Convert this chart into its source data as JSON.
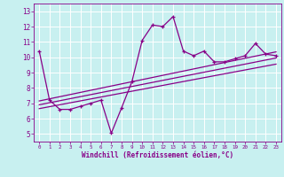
{
  "x_data": [
    0,
    1,
    2,
    3,
    4,
    5,
    6,
    7,
    8,
    9,
    10,
    11,
    12,
    13,
    14,
    15,
    16,
    17,
    18,
    19,
    20,
    21,
    22,
    23
  ],
  "y_main": [
    10.4,
    7.2,
    6.6,
    6.6,
    6.8,
    7.0,
    7.2,
    5.05,
    6.7,
    8.4,
    11.1,
    12.1,
    12.0,
    12.65,
    10.4,
    10.1,
    10.4,
    9.7,
    9.7,
    9.9,
    10.1,
    10.9,
    10.2,
    10.1
  ],
  "reg_lines": [
    {
      "x0": 0,
      "x1": 23,
      "y0": 7.15,
      "y1": 10.35
    },
    {
      "x0": 0,
      "x1": 23,
      "y0": 6.9,
      "y1": 9.95
    },
    {
      "x0": 0,
      "x1": 23,
      "y0": 6.65,
      "y1": 9.55
    }
  ],
  "line_color": "#880088",
  "bg_color": "#c8f0f0",
  "grid_color": "#aadddd",
  "xlabel": "Windchill (Refroidissement éolien,°C)",
  "xlim": [
    -0.5,
    23.5
  ],
  "ylim": [
    4.5,
    13.5
  ],
  "yticks": [
    5,
    6,
    7,
    8,
    9,
    10,
    11,
    12,
    13
  ],
  "xticks": [
    0,
    1,
    2,
    3,
    4,
    5,
    6,
    7,
    8,
    9,
    10,
    11,
    12,
    13,
    14,
    15,
    16,
    17,
    18,
    19,
    20,
    21,
    22,
    23
  ]
}
